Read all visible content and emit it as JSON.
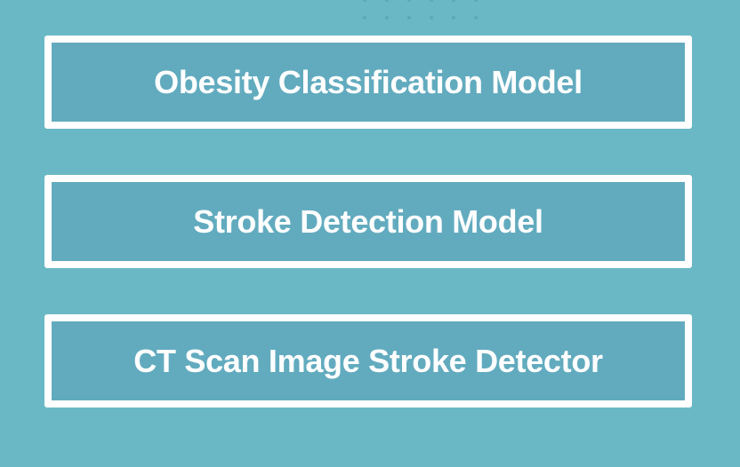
{
  "theme": {
    "background": "#6ab8c6",
    "card_fill": "#62abbf",
    "card_border": "#ffffff",
    "text": "#ffffff"
  },
  "models": [
    {
      "label": "Obesity Classification Model"
    },
    {
      "label": "Stroke Detection Model"
    },
    {
      "label": "CT Scan Image Stroke Detector"
    }
  ]
}
